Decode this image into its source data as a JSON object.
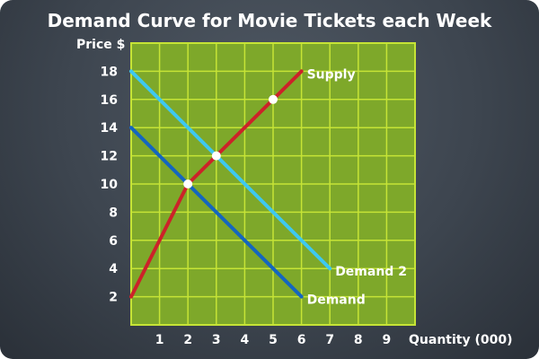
{
  "chart_data": {
    "type": "line",
    "title": "Demand Curve for Movie Tickets each Week",
    "xlabel": "Quantity (000)",
    "ylabel": "Price $",
    "xlim": [
      0,
      10
    ],
    "ylim": [
      0,
      20
    ],
    "x_ticks": [
      1,
      2,
      3,
      4,
      5,
      6,
      7,
      8,
      9
    ],
    "y_ticks": [
      2,
      4,
      6,
      8,
      10,
      12,
      14,
      16,
      18
    ],
    "grid": true,
    "series": [
      {
        "name": "Supply",
        "color": "#cc2229",
        "points": [
          [
            0,
            2
          ],
          [
            2,
            10
          ],
          [
            6,
            18
          ]
        ]
      },
      {
        "name": "Demand 2",
        "color": "#3ec8f0",
        "points": [
          [
            0,
            18
          ],
          [
            7,
            4
          ]
        ]
      },
      {
        "name": "Demand",
        "color": "#1466c0",
        "points": [
          [
            0,
            14
          ],
          [
            6,
            2
          ]
        ]
      }
    ],
    "markers": [
      {
        "x": 2,
        "y": 10
      },
      {
        "x": 3,
        "y": 12
      },
      {
        "x": 5,
        "y": 16
      }
    ],
    "colors": {
      "plot_background": "#7ea82a",
      "grid": "#c6e436",
      "text": "#ffffff",
      "marker": "#ffffff"
    }
  }
}
